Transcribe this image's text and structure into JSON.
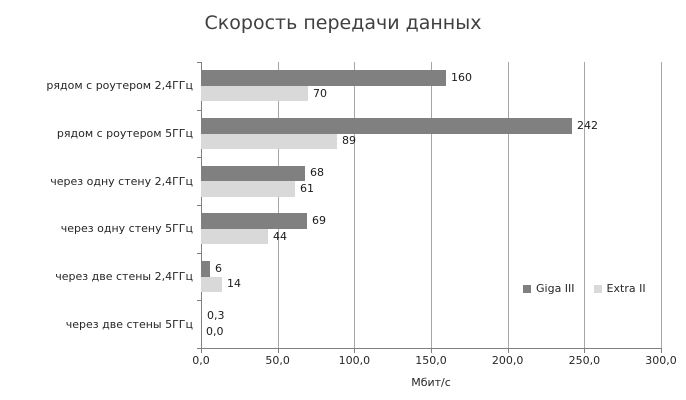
{
  "chart_data": {
    "type": "bar",
    "orientation": "horizontal",
    "title": "Скорость передачи данных",
    "xlabel": "Мбит/с",
    "categories": [
      "рядом с роутером 2,4ГГц",
      "рядом с роутером 5ГГц",
      "через одну стену 2,4ГГц",
      "через одну стену 5ГГц",
      "через две стены 2,4ГГц",
      "через две стены 5ГГц"
    ],
    "series": [
      {
        "name": "Giga III",
        "color": "#808080",
        "values": [
          160,
          242,
          68,
          69,
          6,
          0.3
        ],
        "labels": [
          "160",
          "242",
          "68",
          "69",
          "6",
          "0,3"
        ]
      },
      {
        "name": "Extra II",
        "color": "#d9d9d9",
        "values": [
          70,
          89,
          61,
          44,
          14,
          0
        ],
        "labels": [
          "70",
          "89",
          "61",
          "44",
          "14",
          "0,0"
        ]
      }
    ],
    "xlim": [
      0,
      300
    ],
    "xticks": [
      0,
      50,
      100,
      150,
      200,
      250,
      300
    ],
    "xtick_labels": [
      "0,0",
      "50,0",
      "100,0",
      "150,0",
      "200,0",
      "250,0",
      "300,0"
    ],
    "grid": "vertical-only",
    "legend_position": "inside-right",
    "colors": {
      "title": "#404040",
      "text": "#262626",
      "axis": "#808080",
      "gridline": "#a6a6a6",
      "background": "#ffffff"
    }
  }
}
